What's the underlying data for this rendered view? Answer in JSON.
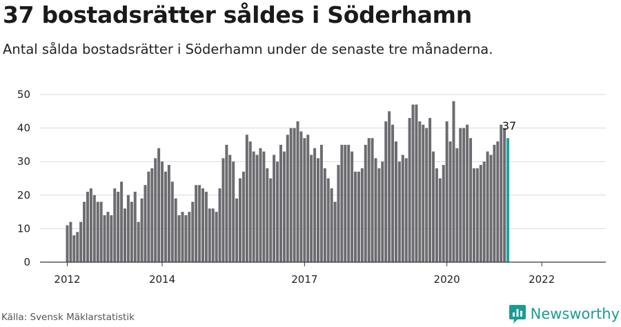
{
  "header": {
    "title": "37 bostadsrätter såldes i Söderhamn",
    "subtitle": "Antal sålda bostadsrätter i Söderhamn under de senaste tre månaderna."
  },
  "footer": {
    "source": "Källa: Svensk Mäklarstatistik",
    "brand": "Newsworthy",
    "brand_icon": "newsworthy-logo-icon"
  },
  "colors": {
    "bar": "#6c6b70",
    "highlight": "#19a5a2",
    "grid": "#d9d9d9",
    "axis": "#333333"
  },
  "chart_data": {
    "type": "bar",
    "title": "",
    "xlabel": "",
    "ylabel": "",
    "ylim": [
      0,
      50
    ],
    "yticks": [
      0,
      10,
      20,
      30,
      40,
      50
    ],
    "xticks": [
      "2012",
      "2014",
      "2017",
      "2020",
      "2022"
    ],
    "grid": true,
    "annotation": {
      "label": "37",
      "target": "last"
    },
    "values": [
      11,
      12,
      8,
      9,
      12,
      18,
      21,
      22,
      20,
      18,
      18,
      14,
      15,
      14,
      22,
      21,
      24,
      16,
      20,
      18,
      21,
      12,
      19,
      23,
      27,
      28,
      31,
      34,
      30,
      27,
      29,
      24,
      19,
      14,
      15,
      14,
      15,
      18,
      23,
      23,
      22,
      21,
      16,
      16,
      15,
      22,
      31,
      35,
      32,
      30,
      19,
      25,
      27,
      38,
      36,
      33,
      32,
      34,
      33,
      28,
      25,
      32,
      30,
      35,
      33,
      38,
      40,
      40,
      42,
      39,
      37,
      38,
      32,
      34,
      31,
      35,
      28,
      25,
      22,
      18,
      29,
      35,
      35,
      35,
      33,
      27,
      27,
      28,
      35,
      37,
      37,
      31,
      28,
      30,
      42,
      45,
      41,
      36,
      30,
      32,
      31,
      43,
      47,
      47,
      42,
      41,
      40,
      43,
      33,
      28,
      25,
      29,
      42,
      36,
      48,
      34,
      40,
      40,
      41,
      37,
      28,
      28,
      29,
      30,
      33,
      32,
      35,
      36,
      41,
      40,
      37
    ]
  }
}
